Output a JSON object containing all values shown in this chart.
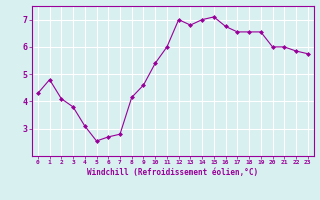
{
  "x": [
    0,
    1,
    2,
    3,
    4,
    5,
    6,
    7,
    8,
    9,
    10,
    11,
    12,
    13,
    14,
    15,
    16,
    17,
    18,
    19,
    20,
    21,
    22,
    23
  ],
  "y": [
    4.3,
    4.8,
    4.1,
    3.8,
    3.1,
    2.55,
    2.7,
    2.8,
    4.15,
    4.6,
    5.4,
    6.0,
    7.0,
    6.8,
    7.0,
    7.1,
    6.75,
    6.55,
    6.55,
    6.55,
    6.0,
    6.0,
    5.85,
    5.75
  ],
  "line_color": "#990099",
  "marker": "D",
  "marker_size": 2,
  "bg_color": "#d8f0f0",
  "grid_color": "#ffffff",
  "xlabel": "Windchill (Refroidissement éolien,°C)",
  "xlabel_color": "#990099",
  "tick_color": "#990099",
  "ylim": [
    2.0,
    7.5
  ],
  "xlim": [
    -0.5,
    23.5
  ],
  "yticks": [
    3,
    4,
    5,
    6,
    7
  ],
  "xticks": [
    0,
    1,
    2,
    3,
    4,
    5,
    6,
    7,
    8,
    9,
    10,
    11,
    12,
    13,
    14,
    15,
    16,
    17,
    18,
    19,
    20,
    21,
    22,
    23
  ],
  "xtick_labels": [
    "0",
    "1",
    "2",
    "3",
    "4",
    "5",
    "6",
    "7",
    "8",
    "9",
    "10",
    "11",
    "12",
    "13",
    "14",
    "15",
    "16",
    "17",
    "18",
    "19",
    "20",
    "21",
    "22",
    "23"
  ]
}
